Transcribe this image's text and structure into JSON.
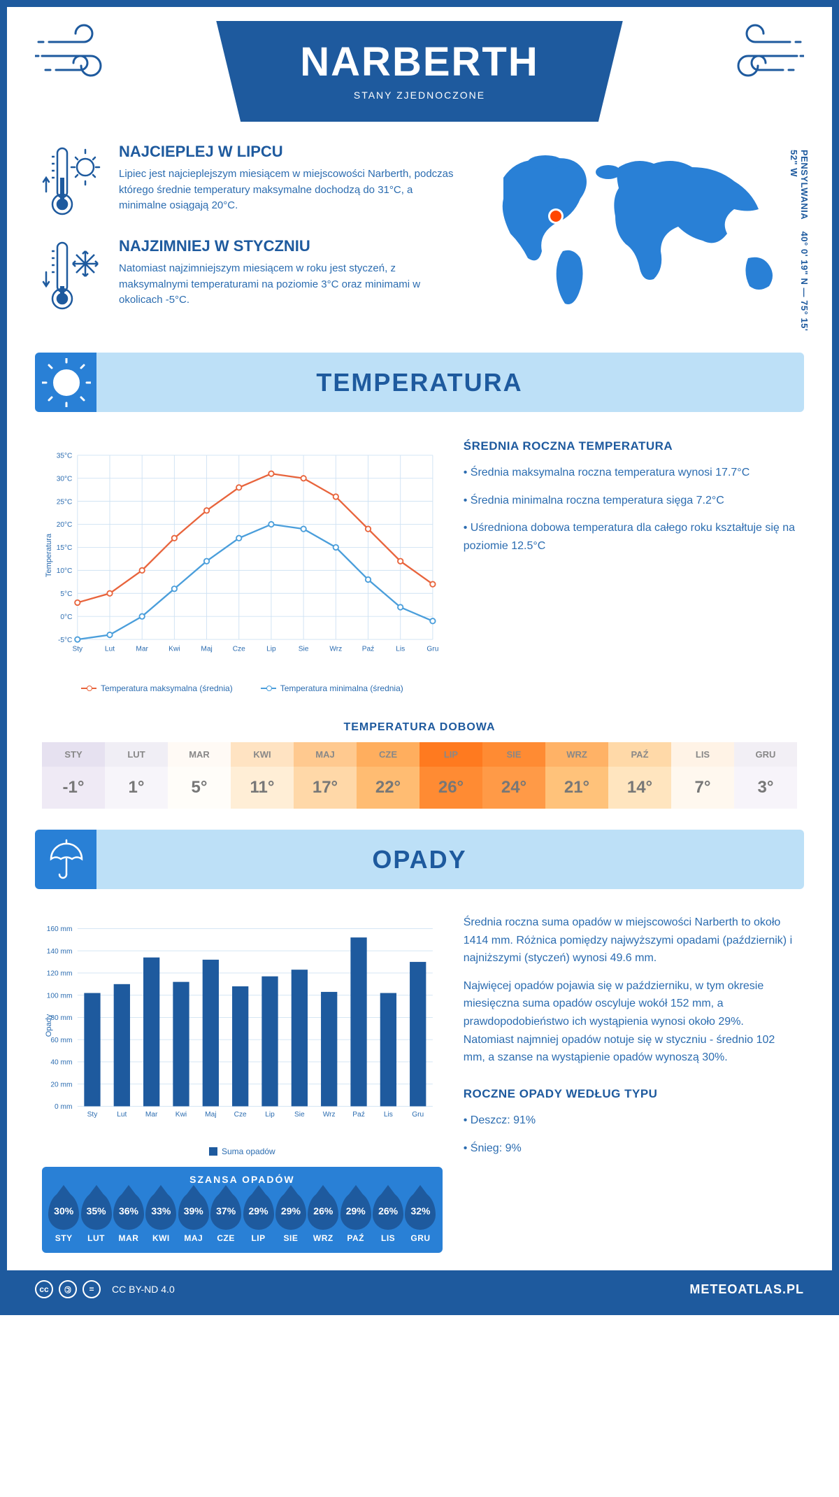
{
  "header": {
    "title": "NARBERTH",
    "subtitle": "STANY ZJEDNOCZONE"
  },
  "intro": {
    "hot": {
      "heading": "NAJCIEPLEJ W LIPCU",
      "text": "Lipiec jest najcieplejszym miesiącem w miejscowości Narberth, podczas którego średnie temperatury maksymalne dochodzą do 31°C, a minimalne osiągają 20°C."
    },
    "cold": {
      "heading": "NAJZIMNIEJ W STYCZNIU",
      "text": "Natomiast najzimniejszym miesiącem w roku jest styczeń, z maksymalnymi temperaturami na poziomie 3°C oraz minimami w okolicach -5°C."
    },
    "coords": "40° 0' 19\" N — 75° 15' 52\" W",
    "region": "PENSYLWANIA"
  },
  "months_short": [
    "Sty",
    "Lut",
    "Mar",
    "Kwi",
    "Maj",
    "Cze",
    "Lip",
    "Sie",
    "Wrz",
    "Paź",
    "Lis",
    "Gru"
  ],
  "months_upper": [
    "STY",
    "LUT",
    "MAR",
    "KWI",
    "MAJ",
    "CZE",
    "LIP",
    "SIE",
    "WRZ",
    "PAŹ",
    "LIS",
    "GRU"
  ],
  "temperature": {
    "section_title": "TEMPERATURA",
    "chart": {
      "y_label": "Temperatura",
      "y_ticks": [
        "-5°C",
        "0°C",
        "5°C",
        "10°C",
        "15°C",
        "20°C",
        "25°C",
        "30°C",
        "35°C"
      ],
      "ylim": [
        -5,
        35
      ],
      "max_series": [
        3,
        5,
        10,
        17,
        23,
        28,
        31,
        30,
        26,
        19,
        12,
        7
      ],
      "min_series": [
        -5,
        -4,
        0,
        6,
        12,
        17,
        20,
        19,
        15,
        8,
        2,
        -1
      ],
      "max_color": "#e8643c",
      "min_color": "#4a9edb",
      "grid_color": "#cfe2f3",
      "legend_max": "Temperatura maksymalna (średnia)",
      "legend_min": "Temperatura minimalna (średnia)"
    },
    "annual": {
      "heading": "ŚREDNIA ROCZNA TEMPERATURA",
      "b1": "• Średnia maksymalna roczna temperatura wynosi 17.7°C",
      "b2": "• Średnia minimalna roczna temperatura sięga 7.2°C",
      "b3": "• Uśredniona dobowa temperatura dla całego roku kształtuje się na poziomie 12.5°C"
    },
    "daily": {
      "heading": "TEMPERATURA DOBOWA",
      "values": [
        "-1°",
        "1°",
        "5°",
        "11°",
        "17°",
        "22°",
        "26°",
        "24°",
        "21°",
        "14°",
        "7°",
        "3°"
      ],
      "header_bg": [
        "#e6e1f0",
        "#f0eef5",
        "#fffaf5",
        "#ffe3c2",
        "#ffc98f",
        "#ffae5e",
        "#ff7a1f",
        "#ff8b33",
        "#ffb266",
        "#ffd9a8",
        "#fff3e6",
        "#f2eff5"
      ],
      "value_bg": [
        "#efeaf5",
        "#f7f5fa",
        "#fffdf9",
        "#ffeed6",
        "#ffd8a8",
        "#ffbc72",
        "#ff8b33",
        "#ff9a47",
        "#ffc27a",
        "#ffe5bf",
        "#fff8ef",
        "#f7f4fa"
      ]
    }
  },
  "precip": {
    "section_title": "OPADY",
    "chart": {
      "y_label": "Opady",
      "y_ticks": [
        "0 mm",
        "20 mm",
        "40 mm",
        "60 mm",
        "80 mm",
        "100 mm",
        "120 mm",
        "140 mm",
        "160 mm"
      ],
      "ylim": [
        0,
        160
      ],
      "values": [
        102,
        110,
        134,
        112,
        132,
        108,
        117,
        123,
        103,
        152,
        102,
        130
      ],
      "bar_color": "#1e5a9e",
      "legend": "Suma opadów"
    },
    "text": {
      "p1": "Średnia roczna suma opadów w miejscowości Narberth to około 1414 mm. Różnica pomiędzy najwyższymi opadami (październik) i najniższymi (styczeń) wynosi 49.6 mm.",
      "p2": "Najwięcej opadów pojawia się w październiku, w tym okresie miesięczna suma opadów oscyluje wokół 152 mm, a prawdopodobieństwo ich wystąpienia wynosi około 29%. Natomiast najmniej opadów notuje się w styczniu - średnio 102 mm, a szanse na wystąpienie opadów wynoszą 30%."
    },
    "chance": {
      "heading": "SZANSA OPADÓW",
      "values": [
        "30%",
        "35%",
        "36%",
        "33%",
        "39%",
        "37%",
        "29%",
        "29%",
        "26%",
        "29%",
        "26%",
        "32%"
      ]
    },
    "annual_type": {
      "heading": "ROCZNE OPADY WEDŁUG TYPU",
      "b1": "• Deszcz: 91%",
      "b2": "• Śnieg: 9%"
    }
  },
  "footer": {
    "license": "CC BY-ND 4.0",
    "site": "METEOATLAS.PL"
  },
  "colors": {
    "primary": "#1e5a9e",
    "accent": "#2980d6",
    "light": "#bde0f7"
  }
}
